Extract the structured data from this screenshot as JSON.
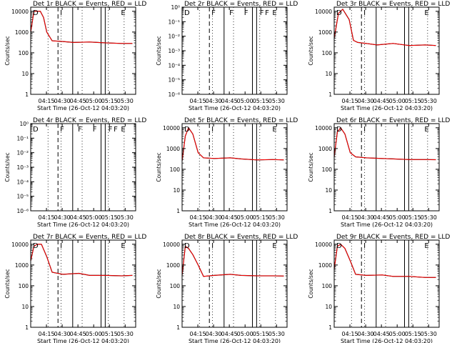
{
  "figure": {
    "background": "#ffffff",
    "event_color": "#000000",
    "lld_color": "#ff0000"
  },
  "chart_data": [
    {
      "type": "line",
      "title": "Det 1r BLACK = Events, RED = LLD",
      "xlabel": "Start Time (26-Oct-12 04:03:20)",
      "ylabel": "Counts/sec",
      "x_tick_labels": [
        "04:15",
        "04:30",
        "04:45",
        "05:00",
        "05:15",
        "05:30"
      ],
      "y_tick_labels": [
        "1",
        "10",
        "100",
        "1000",
        "10000"
      ],
      "ylim_log10": [
        0,
        4.2
      ],
      "markers": [
        "D",
        "I",
        "",
        "",
        "",
        "",
        "E"
      ],
      "series": [
        {
          "name": "Events",
          "color": "#000000",
          "x_min": [
            0,
            3,
            5,
            9,
            12,
            15,
            20,
            28,
            40,
            55,
            70,
            85,
            95
          ],
          "y_log10": [
            3.0,
            4.0,
            4.0,
            4.0,
            3.7,
            3.0,
            2.58,
            2.55,
            2.5,
            2.52,
            2.48,
            2.45,
            2.45
          ]
        },
        {
          "name": "LLD",
          "color": "#ff0000",
          "x_min": [
            0,
            3,
            5,
            9,
            12,
            15,
            20,
            28,
            40,
            55,
            70,
            85,
            95
          ],
          "y_log10": [
            3.0,
            4.0,
            4.0,
            4.0,
            3.7,
            3.0,
            2.58,
            2.55,
            2.5,
            2.52,
            2.48,
            2.45,
            2.45
          ]
        }
      ]
    },
    {
      "type": "line",
      "title": "Det 2r BLACK = Events, RED = LLD",
      "xlabel": "Start Time (26-Oct-12 04:03:20)",
      "ylabel": "Counts/sec",
      "x_tick_labels": [
        "04:15",
        "04:30",
        "04:45",
        "05:00",
        "05:15",
        "05:30"
      ],
      "y_tick_labels": [
        "10⁰",
        "10⁻¹",
        "10⁻²",
        "10⁻³",
        "10⁻⁴",
        "10⁻⁵",
        "10⁻⁶"
      ],
      "ylim_log10": [
        -6,
        0
      ],
      "markers": [
        "D",
        "F",
        "F",
        "F",
        "F",
        "F",
        "E"
      ],
      "series": []
    },
    {
      "type": "line",
      "title": "Det 3r BLACK = Events, RED = LLD",
      "xlabel": "Start Time (26-Oct-12 04:03:20)",
      "ylabel": "Counts/sec",
      "x_tick_labels": [
        "04:15",
        "04:30",
        "04:45",
        "05:00",
        "05:15",
        "05:30"
      ],
      "y_tick_labels": [
        "1",
        "10",
        "100",
        "1000",
        "10000"
      ],
      "ylim_log10": [
        0,
        4.2
      ],
      "markers": [
        "D",
        "I",
        "",
        "",
        "",
        "",
        "E"
      ],
      "series": [
        {
          "name": "Events",
          "color": "#000000",
          "x_min": [
            0,
            4,
            8,
            14,
            18,
            22,
            30,
            40,
            55,
            70,
            85,
            95
          ],
          "y_log10": [
            2.7,
            3.9,
            4.1,
            3.6,
            2.6,
            2.5,
            2.45,
            2.38,
            2.45,
            2.35,
            2.38,
            2.35
          ]
        },
        {
          "name": "LLD",
          "color": "#ff0000",
          "x_min": [
            0,
            4,
            8,
            14,
            18,
            22,
            30,
            40,
            55,
            70,
            85,
            95
          ],
          "y_log10": [
            2.7,
            3.9,
            4.1,
            3.6,
            2.6,
            2.5,
            2.45,
            2.38,
            2.45,
            2.35,
            2.38,
            2.35
          ]
        }
      ]
    },
    {
      "type": "line",
      "title": "Det 4r BLACK = Events, RED = LLD",
      "xlabel": "Start Time (26-Oct-12 04:03:20)",
      "ylabel": "Counts/sec",
      "x_tick_labels": [
        "04:15",
        "04:30",
        "04:45",
        "05:00",
        "05:15",
        "05:30"
      ],
      "y_tick_labels": [
        "10⁰",
        "10⁻¹",
        "10⁻²",
        "10⁻³",
        "10⁻⁴",
        "10⁻⁵",
        "10⁻⁶"
      ],
      "ylim_log10": [
        -6,
        0
      ],
      "markers": [
        "D",
        "F",
        "F",
        "F",
        "F",
        "F",
        "E"
      ],
      "series": []
    },
    {
      "type": "line",
      "title": "Det 5r BLACK = Events, RED = LLD",
      "xlabel": "Start Time (26-Oct-12 04:03:20)",
      "ylabel": "Counts/sec",
      "x_tick_labels": [
        "04:15",
        "04:30",
        "04:45",
        "05:00",
        "05:15",
        "05:30"
      ],
      "y_tick_labels": [
        "1",
        "10",
        "100",
        "1000",
        "10000"
      ],
      "ylim_log10": [
        0,
        4.2
      ],
      "markers": [
        "D",
        "I",
        "",
        "",
        "",
        "",
        "E"
      ],
      "series": [
        {
          "name": "Events",
          "color": "#000000",
          "x_min": [
            0,
            3,
            6,
            10,
            15,
            20,
            30,
            45,
            55,
            70,
            85,
            95
          ],
          "y_log10": [
            2.4,
            3.6,
            4.0,
            3.7,
            2.8,
            2.55,
            2.52,
            2.55,
            2.5,
            2.45,
            2.47,
            2.45
          ]
        },
        {
          "name": "LLD",
          "color": "#ff0000",
          "x_min": [
            0,
            3,
            6,
            10,
            15,
            20,
            30,
            45,
            55,
            70,
            85,
            95
          ],
          "y_log10": [
            2.4,
            3.6,
            4.0,
            3.7,
            2.8,
            2.55,
            2.52,
            2.55,
            2.5,
            2.45,
            2.47,
            2.45
          ]
        }
      ]
    },
    {
      "type": "line",
      "title": "Det 6r BLACK = Events, RED = LLD",
      "xlabel": "Start Time (26-Oct-12 04:03:20)",
      "ylabel": "Counts/sec",
      "x_tick_labels": [
        "04:15",
        "04:30",
        "04:45",
        "05:00",
        "05:15",
        "05:30"
      ],
      "y_tick_labels": [
        "1",
        "10",
        "100",
        "1000",
        "10000"
      ],
      "ylim_log10": [
        0,
        4.2
      ],
      "markers": [
        "D",
        "I",
        "",
        "",
        "",
        "",
        "E"
      ],
      "series": [
        {
          "name": "Events",
          "color": "#000000",
          "x_min": [
            0,
            3,
            6,
            10,
            15,
            20,
            30,
            45,
            55,
            70,
            85,
            95
          ],
          "y_log10": [
            2.6,
            3.8,
            4.0,
            3.7,
            2.8,
            2.6,
            2.55,
            2.52,
            2.5,
            2.47,
            2.47,
            2.46
          ]
        },
        {
          "name": "LLD",
          "color": "#ff0000",
          "x_min": [
            0,
            3,
            6,
            10,
            15,
            20,
            30,
            45,
            55,
            70,
            85,
            95
          ],
          "y_log10": [
            2.6,
            3.8,
            4.0,
            3.7,
            2.8,
            2.6,
            2.55,
            2.52,
            2.5,
            2.47,
            2.47,
            2.46
          ]
        }
      ]
    },
    {
      "type": "line",
      "title": "Det 7r BLACK = Events, RED = LLD",
      "xlabel": "Start Time (26-Oct-12 04:03:20)",
      "ylabel": "Counts/sec",
      "x_tick_labels": [
        "04:15",
        "04:30",
        "04:45",
        "05:00",
        "05:15",
        "05:30"
      ],
      "y_tick_labels": [
        "1",
        "10",
        "100",
        "1000",
        "10000"
      ],
      "ylim_log10": [
        0,
        4.2
      ],
      "markers": [
        "D",
        "I",
        "",
        "",
        "",
        "",
        "E"
      ],
      "series": [
        {
          "name": "Events",
          "color": "#000000",
          "x_min": [
            0,
            3,
            6,
            10,
            15,
            20,
            30,
            45,
            55,
            70,
            85,
            95
          ],
          "y_log10": [
            3.2,
            3.9,
            4.0,
            4.0,
            3.4,
            2.65,
            2.55,
            2.6,
            2.5,
            2.5,
            2.48,
            2.5
          ]
        },
        {
          "name": "LLD",
          "color": "#ff0000",
          "x_min": [
            0,
            3,
            6,
            10,
            15,
            20,
            30,
            45,
            55,
            70,
            85,
            95
          ],
          "y_log10": [
            3.2,
            3.9,
            4.0,
            4.0,
            3.4,
            2.65,
            2.55,
            2.6,
            2.5,
            2.5,
            2.48,
            2.5
          ]
        }
      ]
    },
    {
      "type": "line",
      "title": "Det 8r BLACK = Events, RED = LLD",
      "xlabel": "Start Time (26-Oct-12 04:03:20)",
      "ylabel": "Counts/sec",
      "x_tick_labels": [
        "04:15",
        "04:30",
        "04:45",
        "05:00",
        "05:15",
        "05:30"
      ],
      "y_tick_labels": [
        "1",
        "10",
        "100",
        "1000",
        "10000"
      ],
      "ylim_log10": [
        0,
        4.2
      ],
      "markers": [
        "D",
        "I",
        "",
        "",
        "",
        "",
        "E"
      ],
      "series": [
        {
          "name": "Events",
          "color": "#000000",
          "x_min": [
            0,
            3,
            6,
            10,
            15,
            20,
            30,
            45,
            55,
            70,
            85,
            95
          ],
          "y_log10": [
            2.5,
            3.9,
            3.8,
            3.5,
            3.0,
            2.45,
            2.5,
            2.55,
            2.5,
            2.48,
            2.48,
            2.47
          ]
        },
        {
          "name": "LLD",
          "color": "#ff0000",
          "x_min": [
            0,
            3,
            6,
            10,
            15,
            20,
            30,
            45,
            55,
            70,
            85,
            95
          ],
          "y_log10": [
            2.5,
            3.9,
            3.8,
            3.5,
            3.0,
            2.45,
            2.5,
            2.55,
            2.5,
            2.48,
            2.48,
            2.47
          ]
        }
      ]
    },
    {
      "type": "line",
      "title": "Det 9r BLACK = Events, RED = LLD",
      "xlabel": "Start Time (26-Oct-12 04:03:20)",
      "ylabel": "Counts/sec",
      "x_tick_labels": [
        "04:15",
        "04:30",
        "04:45",
        "05:00",
        "05:15",
        "05:30"
      ],
      "y_tick_labels": [
        "1",
        "10",
        "100",
        "1000",
        "10000"
      ],
      "ylim_log10": [
        0,
        4.2
      ],
      "markers": [
        "D",
        "I",
        "",
        "",
        "",
        "",
        "E"
      ],
      "series": [
        {
          "name": "Events",
          "color": "#000000",
          "x_min": [
            0,
            3,
            6,
            10,
            15,
            20,
            30,
            45,
            55,
            70,
            85,
            95
          ],
          "y_log10": [
            2.8,
            3.9,
            4.0,
            3.8,
            3.2,
            2.55,
            2.5,
            2.52,
            2.45,
            2.45,
            2.4,
            2.4
          ]
        },
        {
          "name": "LLD",
          "color": "#ff0000",
          "x_min": [
            0,
            3,
            6,
            10,
            15,
            20,
            30,
            45,
            55,
            70,
            85,
            95
          ],
          "y_log10": [
            2.8,
            3.9,
            4.0,
            3.8,
            3.2,
            2.55,
            2.5,
            2.52,
            2.45,
            2.45,
            2.4,
            2.4
          ]
        }
      ]
    }
  ]
}
